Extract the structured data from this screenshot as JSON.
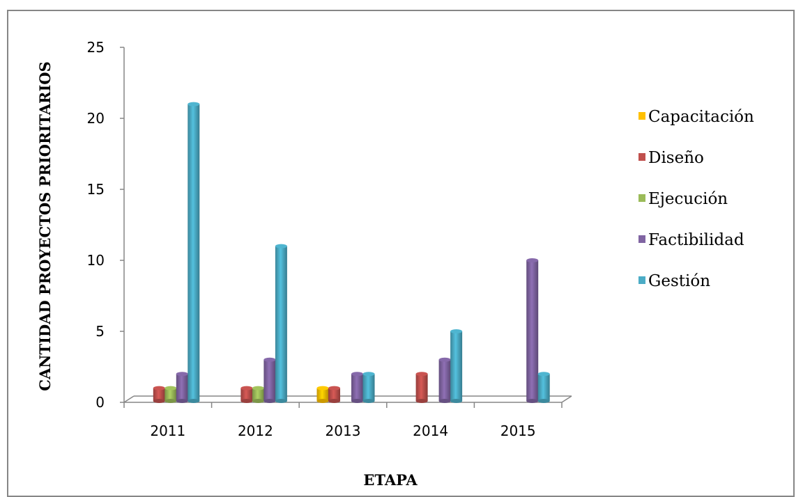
{
  "chart_data": {
    "type": "bar",
    "categories": [
      "2011",
      "2012",
      "2013",
      "2014",
      "2015"
    ],
    "series": [
      {
        "name": "Capacitación",
        "color": "#FFC000",
        "values": [
          0,
          0,
          1,
          0,
          0
        ]
      },
      {
        "name": "Diseño",
        "color": "#C0504D",
        "values": [
          1,
          1,
          1,
          2,
          0
        ]
      },
      {
        "name": "Ejecución",
        "color": "#9BBB59",
        "values": [
          1,
          1,
          0,
          0,
          0
        ]
      },
      {
        "name": "Factibilidad",
        "color": "#8064A2",
        "values": [
          2,
          3,
          2,
          3,
          10
        ]
      },
      {
        "name": "Gestión",
        "color": "#4BACC6",
        "values": [
          21,
          11,
          2,
          5,
          2
        ]
      }
    ],
    "xlabel": "ETAPA",
    "ylabel": "CANTIDAD PROYECTOS PRIORITARIOS",
    "ylim": [
      0,
      25
    ],
    "yticks": [
      0,
      5,
      10,
      15,
      20,
      25
    ],
    "legend_position": "right",
    "grid": false
  }
}
